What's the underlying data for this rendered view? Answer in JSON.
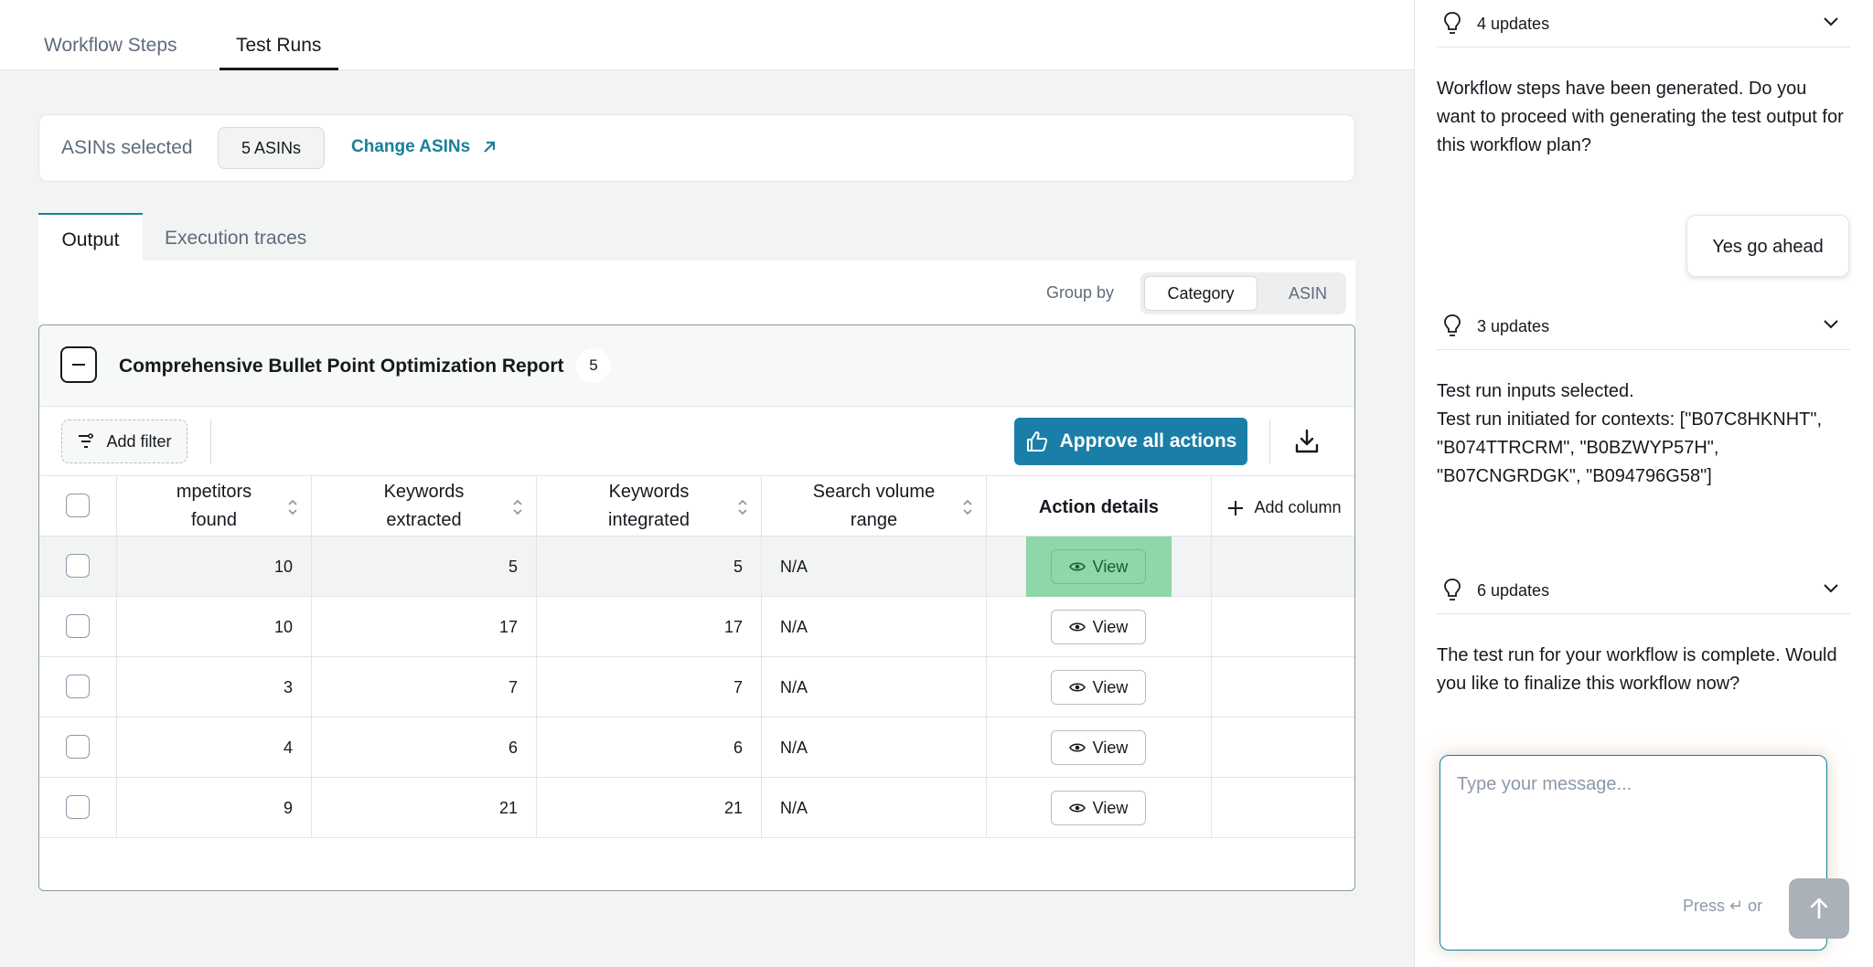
{
  "topnav": {
    "tabs": [
      {
        "label": "Workflow Steps"
      },
      {
        "label": "Test Runs"
      }
    ]
  },
  "asins": {
    "label": "ASINs selected",
    "chip": "5 ASINs",
    "change_label": "Change ASINs"
  },
  "output_tabs": [
    {
      "label": "Output"
    },
    {
      "label": "Execution traces"
    }
  ],
  "groupby": {
    "label": "Group by",
    "options": [
      "Category",
      "ASIN"
    ],
    "selected": "Category"
  },
  "report": {
    "title": "Comprehensive Bullet Point Optimization Report",
    "count": "5",
    "add_filter": "Add filter",
    "approve_label": "Approve all actions",
    "columns": {
      "competitors": [
        "mpetitors",
        "found"
      ],
      "extracted": [
        "Keywords",
        "extracted"
      ],
      "integrated": [
        "Keywords",
        "integrated"
      ],
      "search": [
        "Search volume",
        "range"
      ],
      "action": "Action details",
      "add_column": "Add column"
    },
    "view_label": "View",
    "rows": [
      {
        "competitors": "10",
        "extracted": "5",
        "integrated": "5",
        "search": "N/A"
      },
      {
        "competitors": "10",
        "extracted": "17",
        "integrated": "17",
        "search": "N/A"
      },
      {
        "competitors": "3",
        "extracted": "7",
        "integrated": "7",
        "search": "N/A"
      },
      {
        "competitors": "4",
        "extracted": "6",
        "integrated": "6",
        "search": "N/A"
      },
      {
        "competitors": "9",
        "extracted": "21",
        "integrated": "21",
        "search": "N/A"
      }
    ]
  },
  "chat": {
    "update_groups": [
      "4 updates",
      "3 updates",
      "6 updates"
    ],
    "msg1": "Workflow steps have been generated. Do you want to proceed with generating the test output for this workflow plan?",
    "user_reply": "Yes go ahead",
    "msg2_line1": "Test run inputs selected.",
    "msg2_line2": "Test run initiated for contexts: [\"B07C8HKNHT\", \"B074TTRCRM\", \"B0BZWYP57H\", \"B07CNGRDGK\", \"B094796G58\"]",
    "msg3": "The test run for your workflow is complete. Would you like to finalize this workflow now?",
    "composer_placeholder": "Type your message...",
    "press_hint": "Press ↵ or"
  }
}
